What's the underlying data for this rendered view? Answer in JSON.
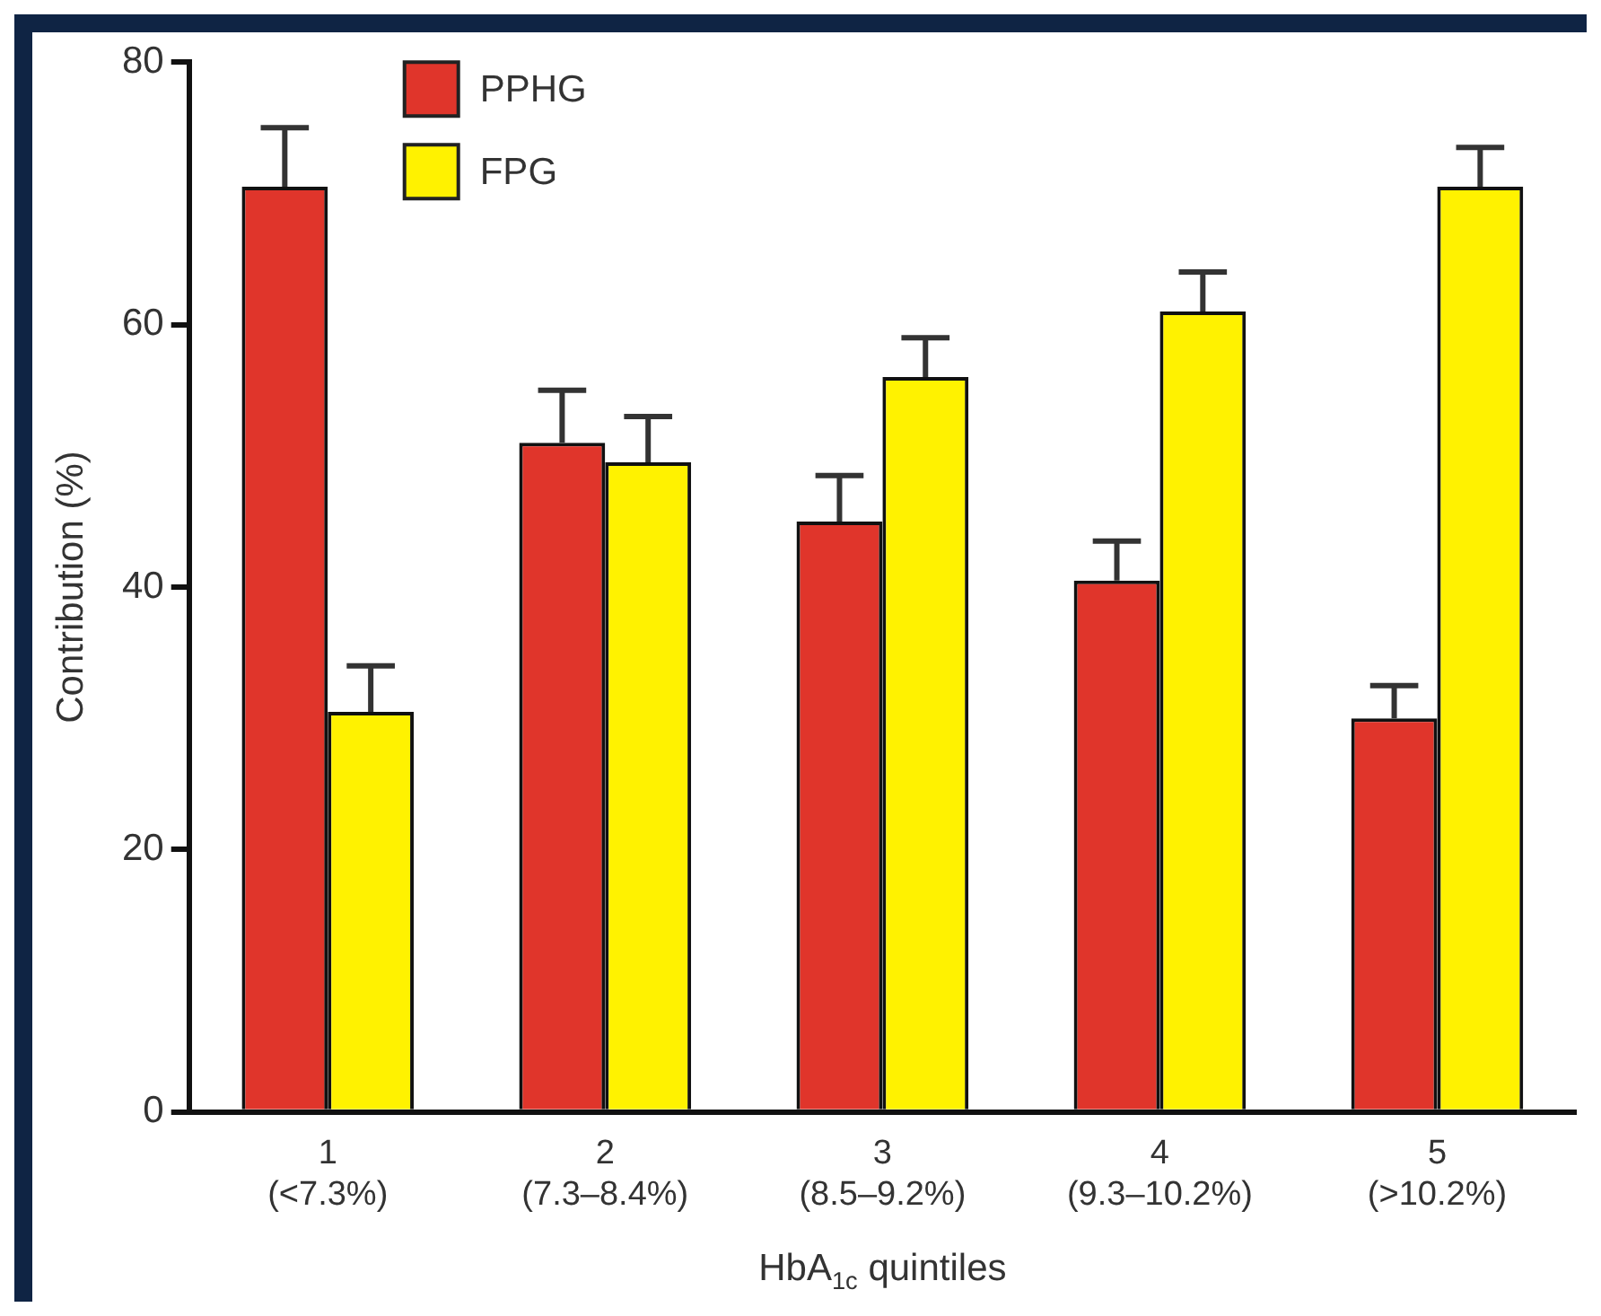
{
  "chart_data": {
    "type": "bar",
    "xlabel": "HbA$_{1c}$ quintiles",
    "ylabel": "Contribution (%)",
    "categories": [
      "1\n(<7.3%)",
      "2\n(7.3–8.4%)",
      "3\n(8.5–9.2%)",
      "4\n(9.3–10.2%)",
      "5\n(>10.2%)"
    ],
    "series": [
      {
        "name": "PPHG",
        "color": "#e0352b",
        "values": [
          70.5,
          51,
          45,
          40.5,
          30
        ],
        "errors": [
          [
            70.5,
            75
          ],
          [
            51,
            55
          ],
          [
            45,
            48.5
          ],
          [
            40.5,
            43.5
          ],
          [
            30,
            32.5
          ]
        ]
      },
      {
        "name": "FPG",
        "color": "#fff200",
        "values": [
          30.5,
          49.5,
          56,
          61,
          70.5
        ],
        "errors": [
          [
            30.5,
            34
          ],
          [
            49.5,
            53
          ],
          [
            56,
            59
          ],
          [
            61,
            64
          ],
          [
            70.5,
            73.5
          ]
        ]
      }
    ],
    "ylim": [
      0,
      80
    ],
    "yticks": [
      0,
      20,
      40,
      60,
      80
    ],
    "grid": false,
    "legend": "top left"
  }
}
